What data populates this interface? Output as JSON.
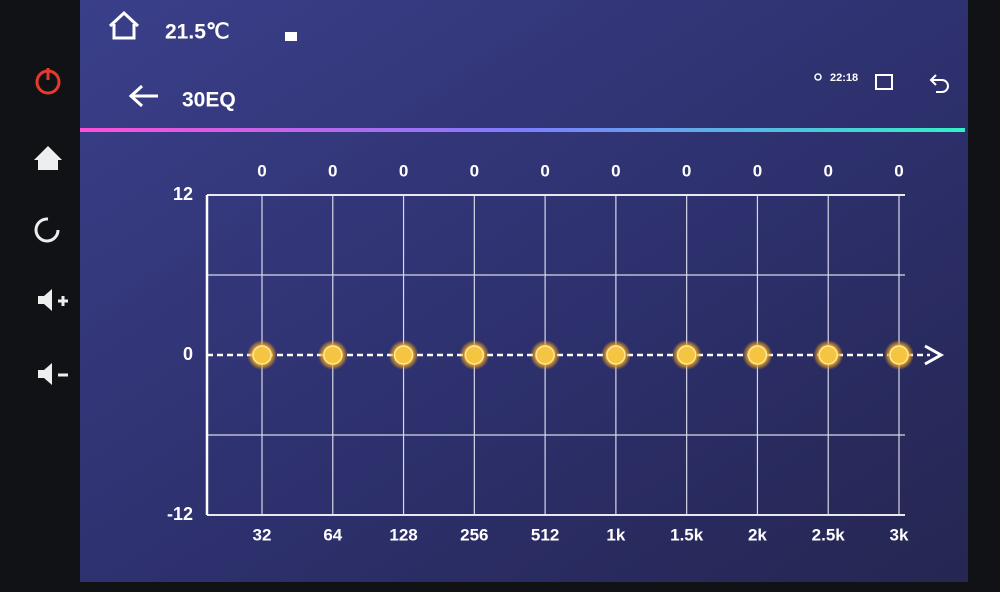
{
  "status_bar": {
    "temperature": "21.5℃",
    "time": "22:18"
  },
  "header": {
    "title": "30EQ"
  },
  "chart_data": {
    "type": "line",
    "categories": [
      "32",
      "64",
      "128",
      "256",
      "512",
      "1k",
      "1.5k",
      "2k",
      "2.5k",
      "3k"
    ],
    "values": [
      0,
      0,
      0,
      0,
      0,
      0,
      0,
      0,
      0,
      0
    ],
    "color": "#f5c542",
    "ylim": [
      -12,
      12
    ],
    "yticks": [
      -12,
      0,
      12
    ],
    "grid": true
  }
}
